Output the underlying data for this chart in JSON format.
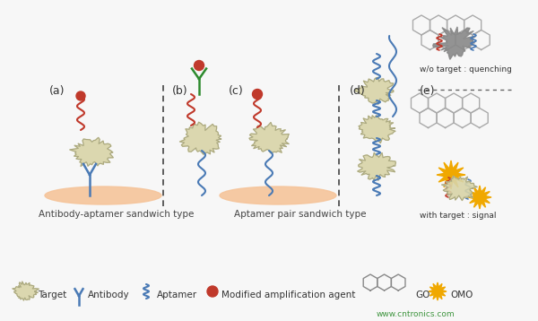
{
  "bg_color": "#f7f7f7",
  "surface_color": "#f5c49a",
  "target_color": "#d8d4a8",
  "target_edge": "#aaa880",
  "antibody_color": "#4a7ab5",
  "aptamer_color1": "#c0392b",
  "aptamer_color2": "#4a7ab5",
  "modified_agent_color": "#c0392b",
  "go_edge_color": "#888888",
  "omo_color": "#f0a800",
  "dashed_line_color": "#444444",
  "green_color": "#2d8a2d",
  "gray_blob_color": "#888888",
  "label_a": "(a)",
  "label_b": "(b)",
  "label_c": "(c)",
  "label_d": "(d)",
  "label_e": "(e)",
  "text_ab": "Antibody-aptamer sandwich type",
  "text_cd": "Aptamer pair sandwich type",
  "text_wo_target": "w/o target : quenching",
  "text_with_target": "with target : signal",
  "legend_target": "Target",
  "legend_antibody": "Antibody",
  "legend_aptamer": "Aptamer",
  "legend_modified": "Modified amplification agent",
  "legend_go": "GO",
  "legend_omo": "OMO",
  "watermark": "www.cntronics.com"
}
